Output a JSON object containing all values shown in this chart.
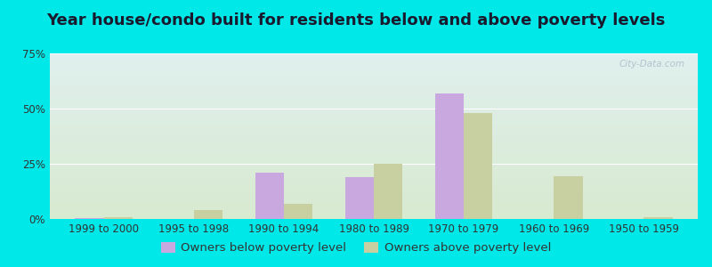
{
  "title": "Year house/condo built for residents below and above poverty levels",
  "categories": [
    "1999 to 2000",
    "1995 to 1998",
    "1990 to 1994",
    "1980 to 1989",
    "1970 to 1979",
    "1960 to 1969",
    "1950 to 1959"
  ],
  "below_poverty": [
    0.5,
    0.0,
    21.0,
    19.0,
    57.0,
    0.0,
    0.0
  ],
  "above_poverty": [
    1.0,
    4.0,
    7.0,
    25.0,
    48.0,
    19.5,
    1.0
  ],
  "below_color": "#c9a8e0",
  "above_color": "#c8cfa0",
  "background_outer": "#00e8e8",
  "background_inner_top": "#e0f0ee",
  "background_inner_bottom": "#d8ead0",
  "ylim": [
    0,
    75
  ],
  "yticks": [
    0,
    25,
    50,
    75
  ],
  "ytick_labels": [
    "0%",
    "25%",
    "50%",
    "75%"
  ],
  "legend_below": "Owners below poverty level",
  "legend_above": "Owners above poverty level",
  "title_fontsize": 13,
  "tick_fontsize": 8.5,
  "legend_fontsize": 9.5
}
